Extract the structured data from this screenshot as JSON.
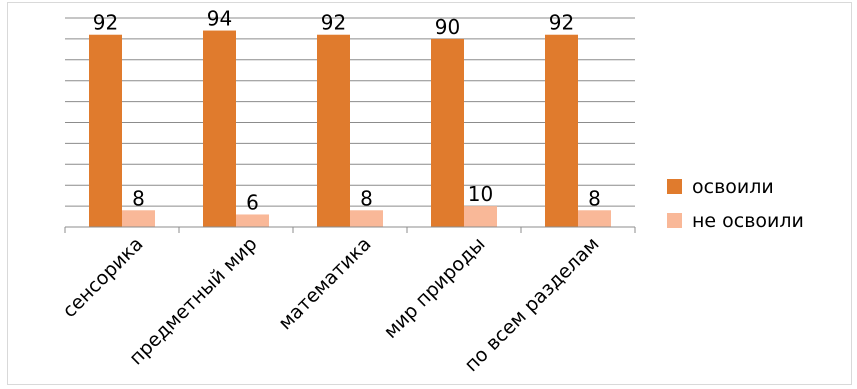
{
  "chart_data": {
    "type": "bar",
    "title": "",
    "xlabel": "",
    "ylabel": "",
    "categories": [
      "сенсорика",
      "предметный мир",
      "математика",
      "мир природы",
      "по всем разделам"
    ],
    "series": [
      {
        "name": "освоили",
        "values": [
          92,
          94,
          92,
          90,
          92
        ]
      },
      {
        "name": "не освоили",
        "values": [
          8,
          6,
          8,
          10,
          8
        ]
      }
    ],
    "ylim": [
      0,
      100
    ],
    "grid": true,
    "y_axis_labels_shown": false,
    "data_labels_shown": true,
    "legend_position": "right"
  },
  "colors": {
    "series": [
      "#e07b2d",
      "#f9b898"
    ],
    "grid": "#8c8c8c"
  }
}
